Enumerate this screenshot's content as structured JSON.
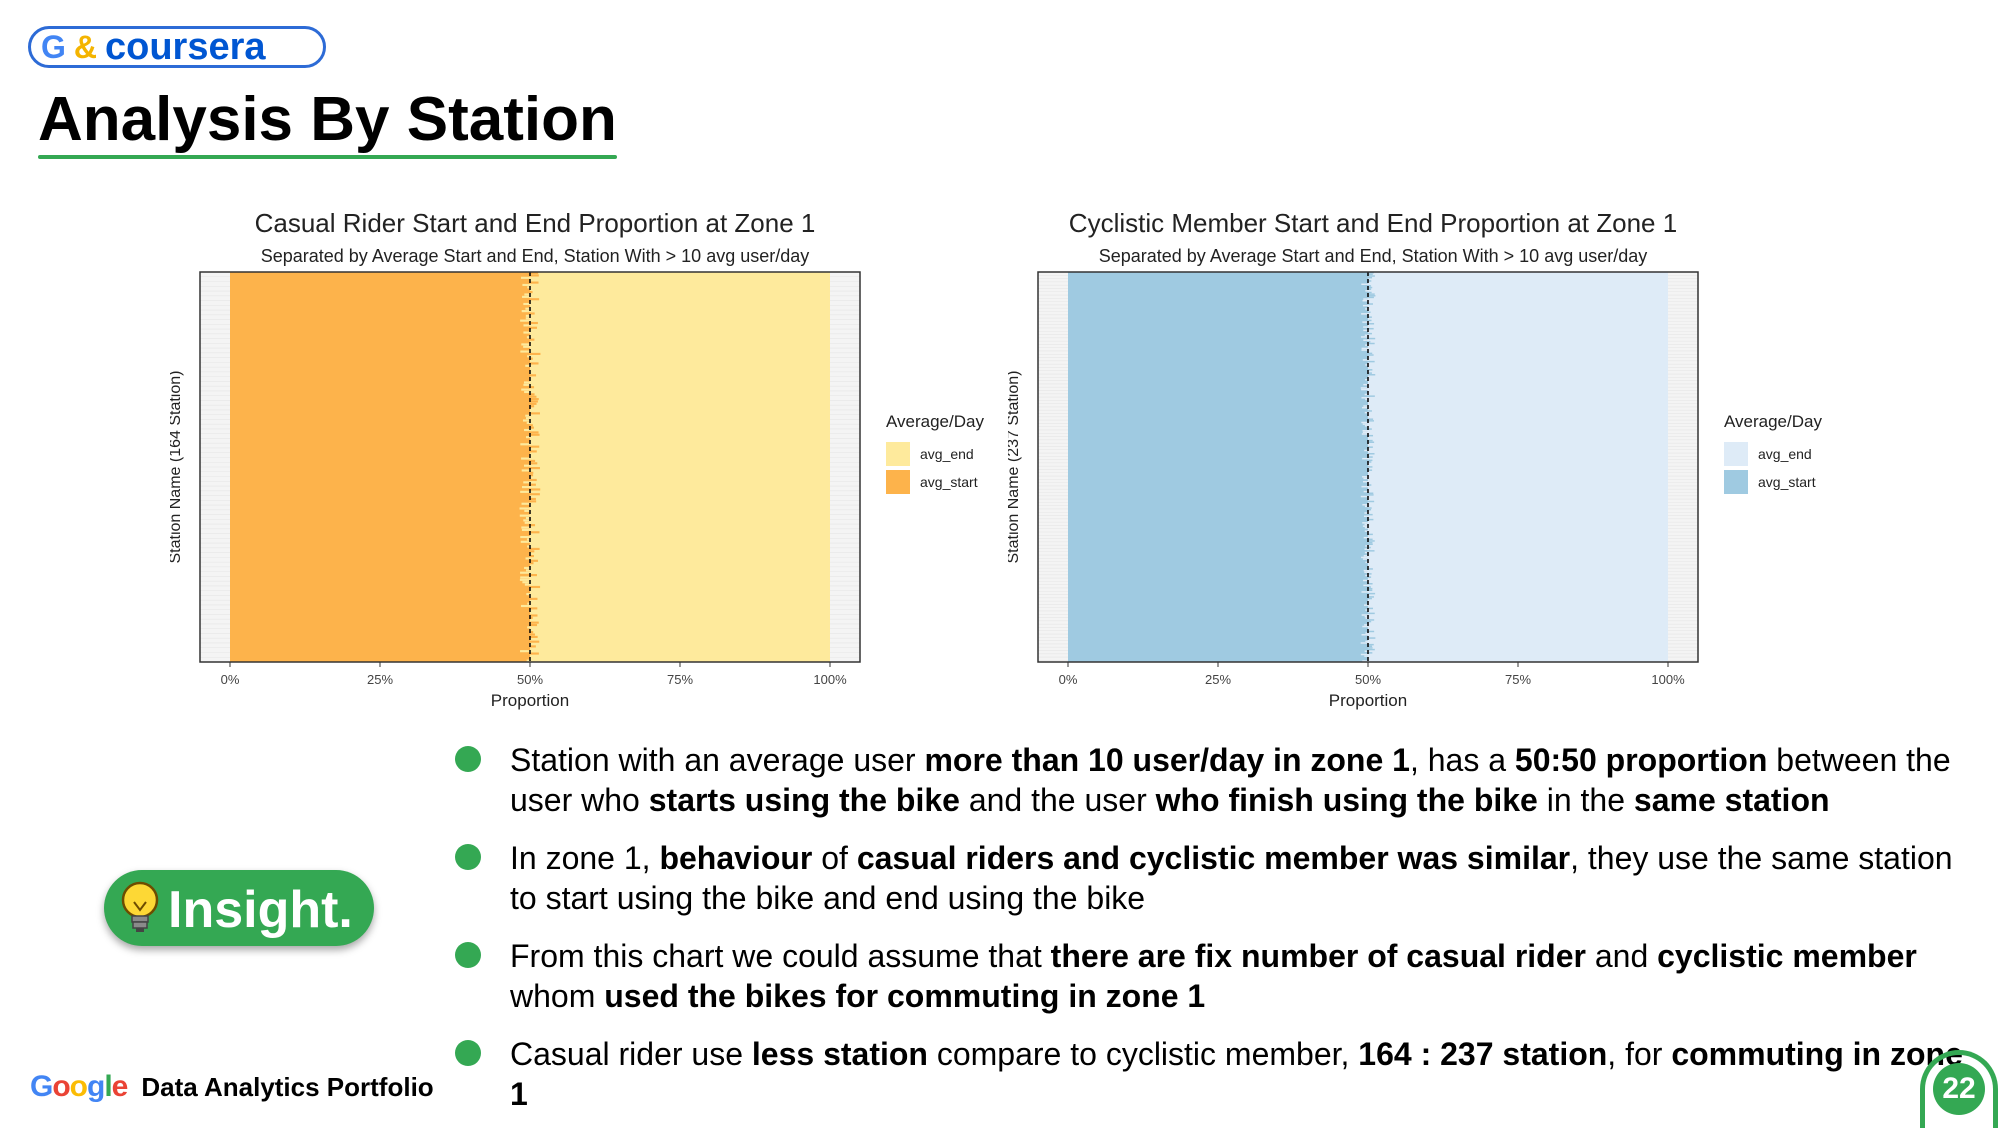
{
  "brand": {
    "g_letter": "G",
    "ampersand": "&",
    "coursera": "coursera"
  },
  "slide": {
    "title": "Analysis By Station",
    "page_number": "22"
  },
  "colors": {
    "casual_start": "#fdb34b",
    "casual_end": "#feea9c",
    "member_start": "#9fcae1",
    "member_end": "#deebf7",
    "accent_green": "#34a853"
  },
  "chart_data": [
    {
      "type": "bar",
      "orientation": "horizontal-stacked",
      "title": "Casual Rider Start and End Proportion at Zone 1",
      "subtitle": "Separated by Average Start and End, Station With > 10 avg user/day",
      "xlabel": "Proportion",
      "ylabel": "Station Name (164 Station)",
      "xticks": [
        "0%",
        "25%",
        "50%",
        "75%",
        "100%"
      ],
      "xlim": [
        0,
        1
      ],
      "station_count": 164,
      "reference_line": 0.5,
      "legend": {
        "title": "Average/Day",
        "position": "right",
        "entries": [
          "avg_end",
          "avg_start"
        ]
      },
      "series": [
        {
          "name": "avg_start",
          "color": "#fdb34b",
          "approx_value": 0.5
        },
        {
          "name": "avg_end",
          "color": "#feea9c",
          "approx_value": 0.5
        }
      ]
    },
    {
      "type": "bar",
      "orientation": "horizontal-stacked",
      "title": "Cyclistic Member Start and End Proportion at Zone 1",
      "subtitle": "Separated by Average Start and End, Station With > 10 avg user/day",
      "xlabel": "Proportion",
      "ylabel": "Station Name (237 Station)",
      "xticks": [
        "0%",
        "25%",
        "50%",
        "75%",
        "100%"
      ],
      "xlim": [
        0,
        1
      ],
      "station_count": 237,
      "reference_line": 0.5,
      "legend": {
        "title": "Average/Day",
        "position": "right",
        "entries": [
          "avg_end",
          "avg_start"
        ]
      },
      "series": [
        {
          "name": "avg_start",
          "color": "#9fcae1",
          "approx_value": 0.5
        },
        {
          "name": "avg_end",
          "color": "#deebf7",
          "approx_value": 0.5
        }
      ]
    }
  ],
  "insight_label": "Insight.",
  "bullets": [
    {
      "parts": [
        {
          "t": "Station with an average user ",
          "b": false
        },
        {
          "t": "more than 10 user/day in zone 1",
          "b": true
        },
        {
          "t": ", has a ",
          "b": false
        },
        {
          "t": "50:50 proportion",
          "b": true
        },
        {
          "t": " between the user who ",
          "b": false
        },
        {
          "t": "starts using the bike",
          "b": true
        },
        {
          "t": " and the user ",
          "b": false
        },
        {
          "t": "who finish using the bike",
          "b": true
        },
        {
          "t": " in the ",
          "b": false
        },
        {
          "t": "same station",
          "b": true
        }
      ]
    },
    {
      "parts": [
        {
          "t": "In zone 1, ",
          "b": false
        },
        {
          "t": "behaviour",
          "b": true
        },
        {
          "t": " of ",
          "b": false
        },
        {
          "t": "casual riders and cyclistic member was similar",
          "b": true
        },
        {
          "t": ", they use the same station to start using the bike and end using the bike",
          "b": false
        }
      ]
    },
    {
      "parts": [
        {
          "t": "From this chart we could assume that ",
          "b": false
        },
        {
          "t": "there are fix number of casual rider",
          "b": true
        },
        {
          "t": " and ",
          "b": false
        },
        {
          "t": "cyclistic member",
          "b": true
        },
        {
          "t": " whom ",
          "b": false
        },
        {
          "t": "used the bikes for commuting in zone 1",
          "b": true
        }
      ]
    },
    {
      "parts": [
        {
          "t": "Casual rider use ",
          "b": false
        },
        {
          "t": "less station",
          "b": true
        },
        {
          "t": " compare to cyclistic member, ",
          "b": false
        },
        {
          "t": "164 : 237 station",
          "b": true
        },
        {
          "t": ", for ",
          "b": false
        },
        {
          "t": "commuting in zone 1",
          "b": true
        }
      ]
    }
  ],
  "footer": {
    "google_word": "Google",
    "text": "Data Analytics Portfolio"
  }
}
